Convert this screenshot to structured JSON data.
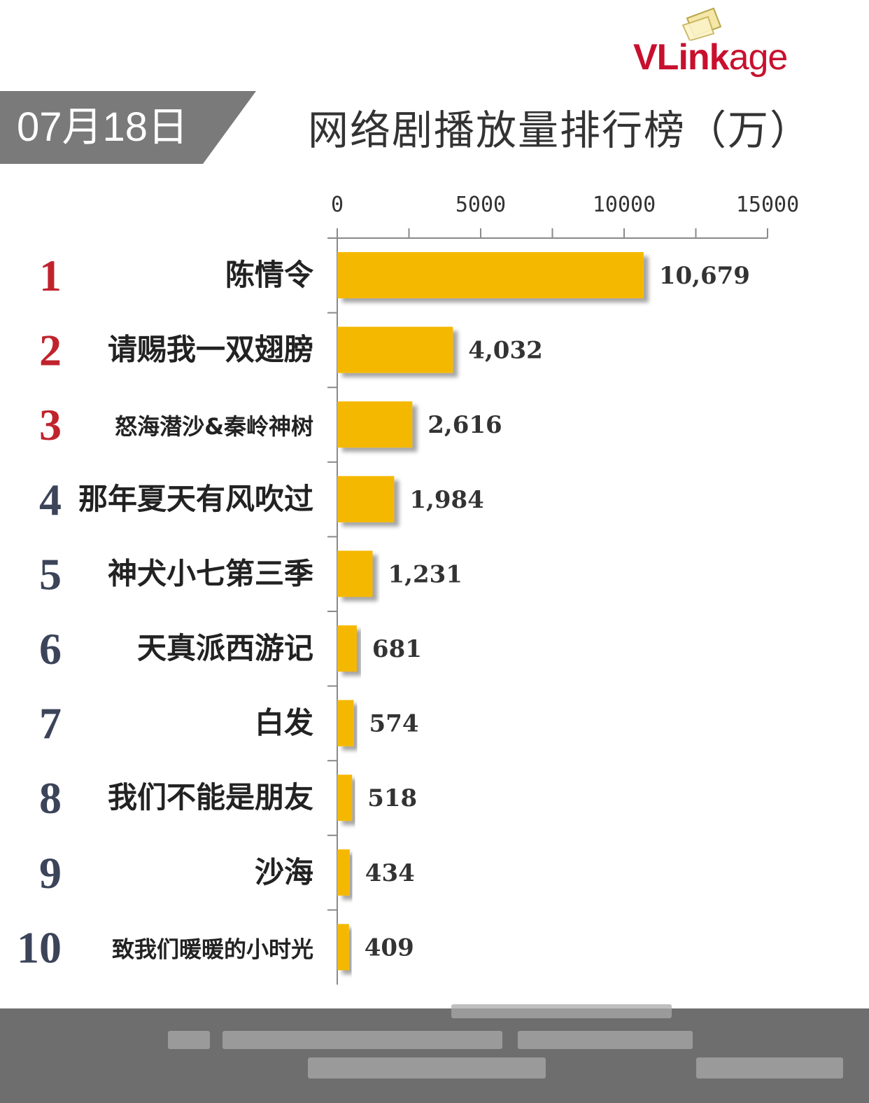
{
  "logo": {
    "text_vl": "VLink",
    "text_age": "age"
  },
  "date_badge": "07月18日",
  "title": "网络剧播放量排行榜（万）",
  "chart_data": {
    "type": "bar",
    "orientation": "horizontal",
    "title": "网络剧播放量排行榜（万）",
    "xlim": [
      0,
      15000
    ],
    "x_ticks": [
      0,
      5000,
      10000,
      15000
    ],
    "grid": false,
    "bar_color": "#f5b800",
    "ranks": [
      "1",
      "2",
      "3",
      "4",
      "5",
      "6",
      "7",
      "8",
      "9",
      "10"
    ],
    "rank_colors": [
      "#c0232c",
      "#c0232c",
      "#c0232c",
      "#3b4459",
      "#3b4459",
      "#3b4459",
      "#3b4459",
      "#3b4459",
      "#3b4459",
      "#3b4459"
    ],
    "categories": [
      "陈情令",
      "请赐我一双翅膀",
      "怒海潜沙&秦岭神树",
      "那年夏天有风吹过",
      "神犬小七第三季",
      "天真派西游记",
      "白发",
      "我们不能是朋友",
      "沙海",
      "致我们暖暖的小时光"
    ],
    "values": [
      10679,
      4032,
      2616,
      1984,
      1231,
      681,
      574,
      518,
      434,
      409
    ],
    "data_labels": [
      "10,679",
      "4,032",
      "2,616",
      "1,984",
      "1,231",
      "681",
      "574",
      "518",
      "434",
      "409"
    ]
  }
}
